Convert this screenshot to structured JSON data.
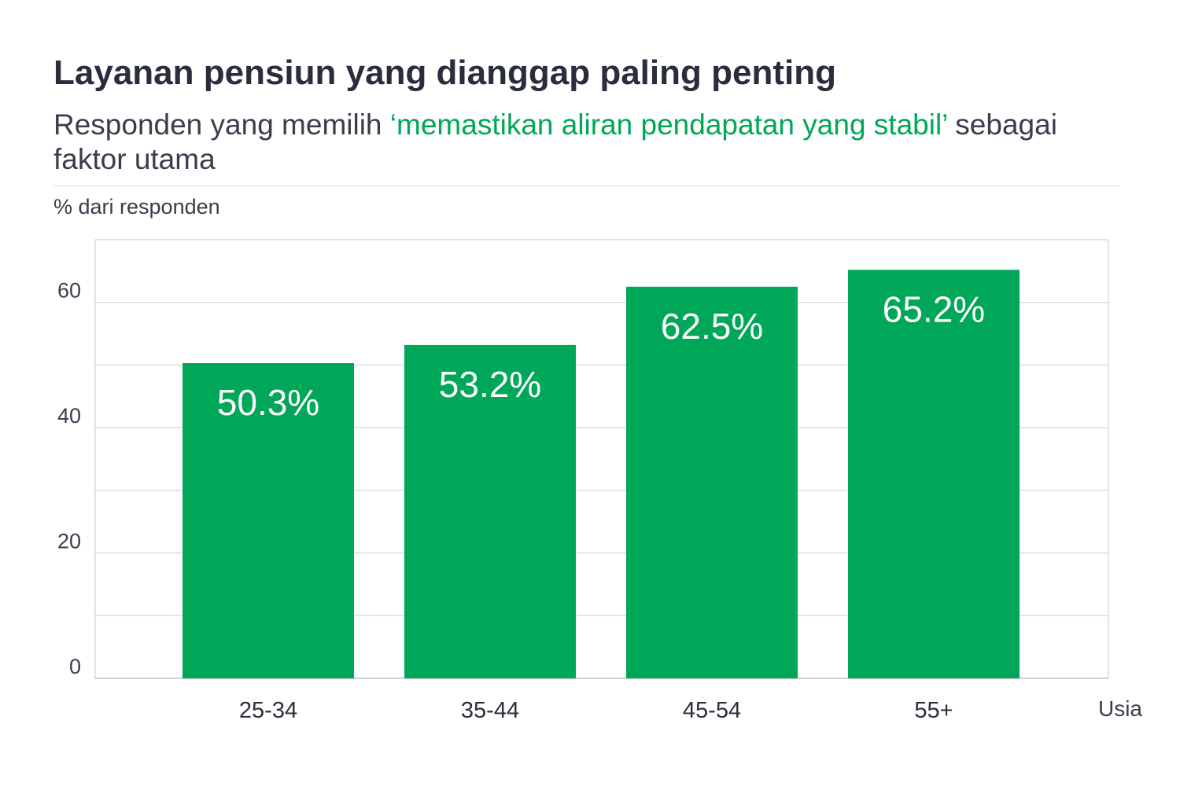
{
  "header": {
    "title": "Layanan pensiun yang dianggap paling penting",
    "subtitle_pre": "Responden yang memilih ",
    "subtitle_highlight": "‘memastikan aliran pendapatan yang stabil’",
    "subtitle_post": " sebagai faktor utama"
  },
  "colors": {
    "bar": "#00a758",
    "highlight": "#00a758",
    "title": "#2a2d3d",
    "grid": "#dcdcdc"
  },
  "chart_data": {
    "type": "bar",
    "categories": [
      "25-34",
      "35-44",
      "45-54",
      "55+"
    ],
    "values": [
      50.3,
      53.2,
      62.5,
      65.2
    ],
    "value_labels": [
      "50.3%",
      "53.2%",
      "62.5%",
      "65.2%"
    ],
    "ylabel": "% dari responden",
    "xlabel": "Usia",
    "ylim": [
      0,
      70
    ],
    "yticks": [
      0,
      20,
      40,
      60
    ],
    "grid_step": 10,
    "grid": true,
    "legend": "none"
  }
}
